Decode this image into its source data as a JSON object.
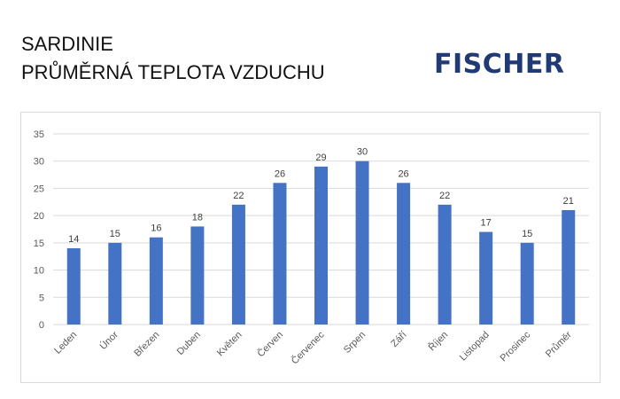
{
  "header": {
    "title_line1": "SARDINIE",
    "title_line2": "PRŮMĚRNÁ TEPLOTA  VZDUCHU",
    "logo": "FISCHER"
  },
  "colors": {
    "bar": "#4472c4",
    "grid": "#d9d9d9",
    "logo": "#1f3a75"
  },
  "chart_data": {
    "type": "bar",
    "categories": [
      "Leden",
      "Únor",
      "Březen",
      "Duben",
      "Květen",
      "Červen",
      "Červenec",
      "Srpen",
      "Září",
      "Říjen",
      "Listopad",
      "Prosinec",
      "Průměr"
    ],
    "values": [
      14,
      15,
      16,
      18,
      22,
      26,
      29,
      30,
      26,
      22,
      17,
      15,
      21
    ],
    "ylim": [
      0,
      35
    ],
    "yticks": [
      0,
      5,
      10,
      15,
      20,
      25,
      30,
      35
    ],
    "grid": true,
    "data_labels": true
  }
}
